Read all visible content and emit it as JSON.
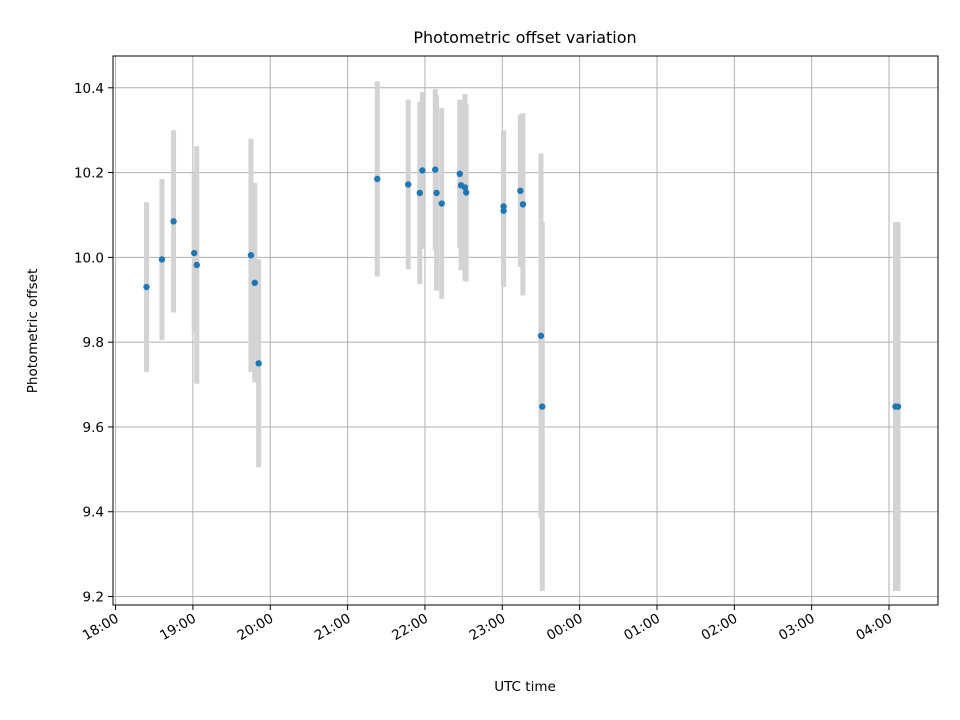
{
  "chart_data": {
    "type": "scatter",
    "title": "Photometric offset variation",
    "xlabel": "UTC time",
    "ylabel": "Photometric offset",
    "x_tick_labels": [
      "18:00",
      "19:00",
      "20:00",
      "21:00",
      "22:00",
      "23:00",
      "00:00",
      "01:00",
      "02:00",
      "03:00",
      "04:00"
    ],
    "y_tick_labels": [
      "9.2",
      "9.4",
      "9.6",
      "9.8",
      "10.0",
      "10.2",
      "10.4"
    ],
    "ylim": [
      9.18,
      10.475
    ],
    "xlim": [
      "17:58",
      "04:38"
    ],
    "grid": true,
    "colors": {
      "point": "#1f77b4",
      "errorbar": "#d3d3d3"
    },
    "series": [
      {
        "points": [
          {
            "x": "18:24",
            "y": 9.93,
            "err": 0.2
          },
          {
            "x": "18:36",
            "y": 9.995,
            "err": 0.19
          },
          {
            "x": "18:45",
            "y": 10.085,
            "err": 0.215
          },
          {
            "x": "19:01",
            "y": 10.01,
            "err": 0.19
          },
          {
            "x": "19:03",
            "y": 9.982,
            "err": 0.28
          },
          {
            "x": "19:45",
            "y": 10.005,
            "err": 0.275
          },
          {
            "x": "19:48",
            "y": 9.94,
            "err": 0.235
          },
          {
            "x": "19:51",
            "y": 9.75,
            "err": 0.245
          },
          {
            "x": "21:23",
            "y": 10.185,
            "err": 0.23
          },
          {
            "x": "21:47",
            "y": 10.172,
            "err": 0.2
          },
          {
            "x": "21:56",
            "y": 10.152,
            "err": 0.215
          },
          {
            "x": "21:58",
            "y": 10.205,
            "err": 0.185
          },
          {
            "x": "22:08",
            "y": 10.207,
            "err": 0.19
          },
          {
            "x": "22:09",
            "y": 10.152,
            "err": 0.23
          },
          {
            "x": "22:13",
            "y": 10.127,
            "err": 0.225
          },
          {
            "x": "22:27",
            "y": 10.197,
            "err": 0.175
          },
          {
            "x": "22:28",
            "y": 10.17,
            "err": 0.2
          },
          {
            "x": "22:31",
            "y": 10.165,
            "err": 0.22
          },
          {
            "x": "22:32",
            "y": 10.153,
            "err": 0.21
          },
          {
            "x": "23:01",
            "y": 10.12,
            "err": 0.18
          },
          {
            "x": "23:01",
            "y": 10.11,
            "err": 0.18
          },
          {
            "x": "23:14",
            "y": 10.157,
            "err": 0.18
          },
          {
            "x": "23:16",
            "y": 10.125,
            "err": 0.215
          },
          {
            "x": "23:30",
            "y": 9.815,
            "err": 0.43
          },
          {
            "x": "23:31",
            "y": 9.648,
            "err": 0.435
          },
          {
            "x": "04:05",
            "y": 9.648,
            "err": 0.435
          },
          {
            "x": "04:07",
            "y": 9.648,
            "err": 0.435
          }
        ]
      }
    ]
  }
}
